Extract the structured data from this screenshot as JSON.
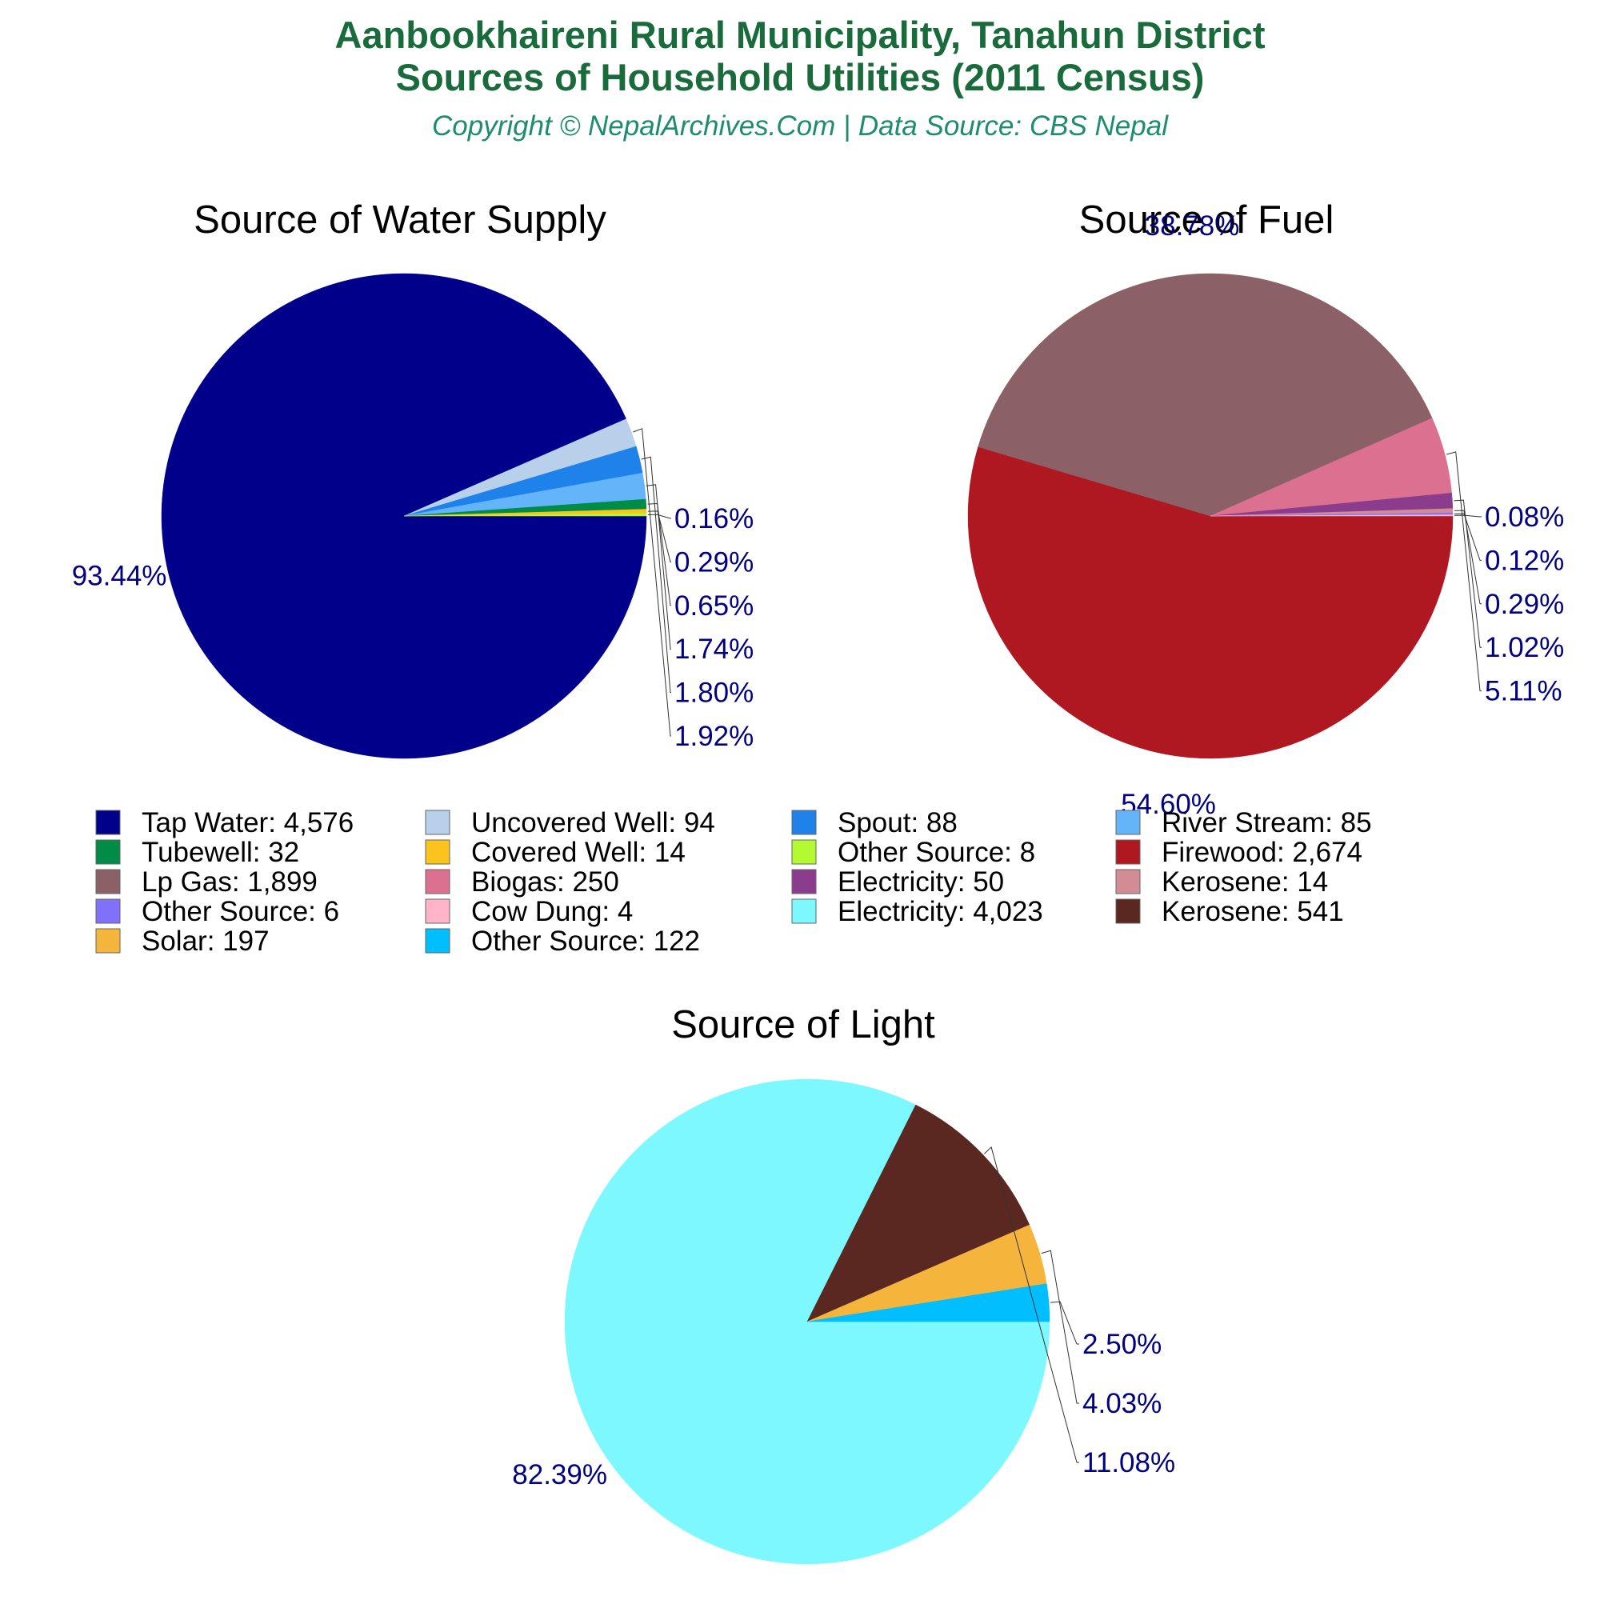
{
  "title_line1": "Aanbookhaireni Rural Municipality, Tanahun District",
  "title_line2": "Sources of Household Utilities (2011 Census)",
  "subtitle": "Copyright © NepalArchives.Com | Data Source: CBS Nepal",
  "colors": {
    "title": "#1a6b3c",
    "subtitle": "#1e8c6e",
    "label": "#000080"
  },
  "chart_data": [
    {
      "type": "pie",
      "title": "Source of Water Supply",
      "slices": [
        {
          "label": "Tap Water",
          "value": 4576,
          "value_text": "4,576",
          "percent": "93.44%",
          "color": "#00008b"
        },
        {
          "label": "Uncovered Well",
          "value": 94,
          "value_text": "94",
          "percent": "1.92%",
          "color": "#b8d0ea"
        },
        {
          "label": "Spout",
          "value": 88,
          "value_text": "88",
          "percent": "1.80%",
          "color": "#1e82ea"
        },
        {
          "label": "River Stream",
          "value": 85,
          "value_text": "85",
          "percent": "1.74%",
          "color": "#64b4fa"
        },
        {
          "label": "Tubewell",
          "value": 32,
          "value_text": "32",
          "percent": "0.65%",
          "color": "#008c46"
        },
        {
          "label": "Covered Well",
          "value": 14,
          "value_text": "14",
          "percent": "0.29%",
          "color": "#fac31e"
        },
        {
          "label": "Other Source",
          "value": 8,
          "value_text": "8",
          "percent": "0.16%",
          "color": "#b4fa32"
        }
      ]
    },
    {
      "type": "pie",
      "title": "Source of Fuel",
      "slices": [
        {
          "label": "Firewood",
          "value": 2674,
          "value_text": "2,674",
          "percent": "54.60%",
          "color": "#af1820"
        },
        {
          "label": "Lp Gas",
          "value": 1899,
          "value_text": "1,899",
          "percent": "38.78%",
          "color": "#8b6066"
        },
        {
          "label": "Biogas",
          "value": 250,
          "value_text": "250",
          "percent": "5.11%",
          "color": "#dc7090"
        },
        {
          "label": "Electricity",
          "value": 50,
          "value_text": "50",
          "percent": "1.02%",
          "color": "#8c3c8c"
        },
        {
          "label": "Kerosene",
          "value": 14,
          "value_text": "14",
          "percent": "0.29%",
          "color": "#d28c96"
        },
        {
          "label": "Other Source",
          "value": 6,
          "value_text": "6",
          "percent": "0.12%",
          "color": "#8070fa"
        },
        {
          "label": "Cow Dung",
          "value": 4,
          "value_text": "4",
          "percent": "0.08%",
          "color": "#ffb4c8"
        }
      ]
    },
    {
      "type": "pie",
      "title": "Source of Light",
      "slices": [
        {
          "label": "Electricity",
          "value": 4023,
          "value_text": "4,023",
          "percent": "82.39%",
          "color": "#7ef8ff"
        },
        {
          "label": "Kerosene",
          "value": 541,
          "value_text": "541",
          "percent": "11.08%",
          "color": "#5a2820"
        },
        {
          "label": "Solar",
          "value": 197,
          "value_text": "197",
          "percent": "4.03%",
          "color": "#f5b43c"
        },
        {
          "label": "Other Source",
          "value": 122,
          "value_text": "122",
          "percent": "2.50%",
          "color": "#00beff"
        }
      ]
    }
  ],
  "legend": [
    {
      "text": "Tap Water: 4,576",
      "color": "#00008b"
    },
    {
      "text": "Uncovered Well: 94",
      "color": "#b8d0ea"
    },
    {
      "text": "Spout: 88",
      "color": "#1e82ea"
    },
    {
      "text": "River Stream: 85",
      "color": "#64b4fa"
    },
    {
      "text": "Tubewell: 32",
      "color": "#008c46"
    },
    {
      "text": "Covered Well: 14",
      "color": "#fac31e"
    },
    {
      "text": "Other Source: 8",
      "color": "#b4fa32"
    },
    {
      "text": "Firewood: 2,674",
      "color": "#af1820"
    },
    {
      "text": "Lp Gas: 1,899",
      "color": "#8b6066"
    },
    {
      "text": "Biogas: 250",
      "color": "#dc7090"
    },
    {
      "text": "Electricity: 50",
      "color": "#8c3c8c"
    },
    {
      "text": "Kerosene: 14",
      "color": "#d28c96"
    },
    {
      "text": "Other Source: 6",
      "color": "#8070fa"
    },
    {
      "text": "Cow Dung: 4",
      "color": "#ffb4c8"
    },
    {
      "text": "Electricity: 4,023",
      "color": "#7ef8ff"
    },
    {
      "text": "Kerosene: 541",
      "color": "#5a2820"
    },
    {
      "text": "Solar: 197",
      "color": "#f5b43c"
    },
    {
      "text": "Other Source: 122",
      "color": "#00beff"
    }
  ]
}
